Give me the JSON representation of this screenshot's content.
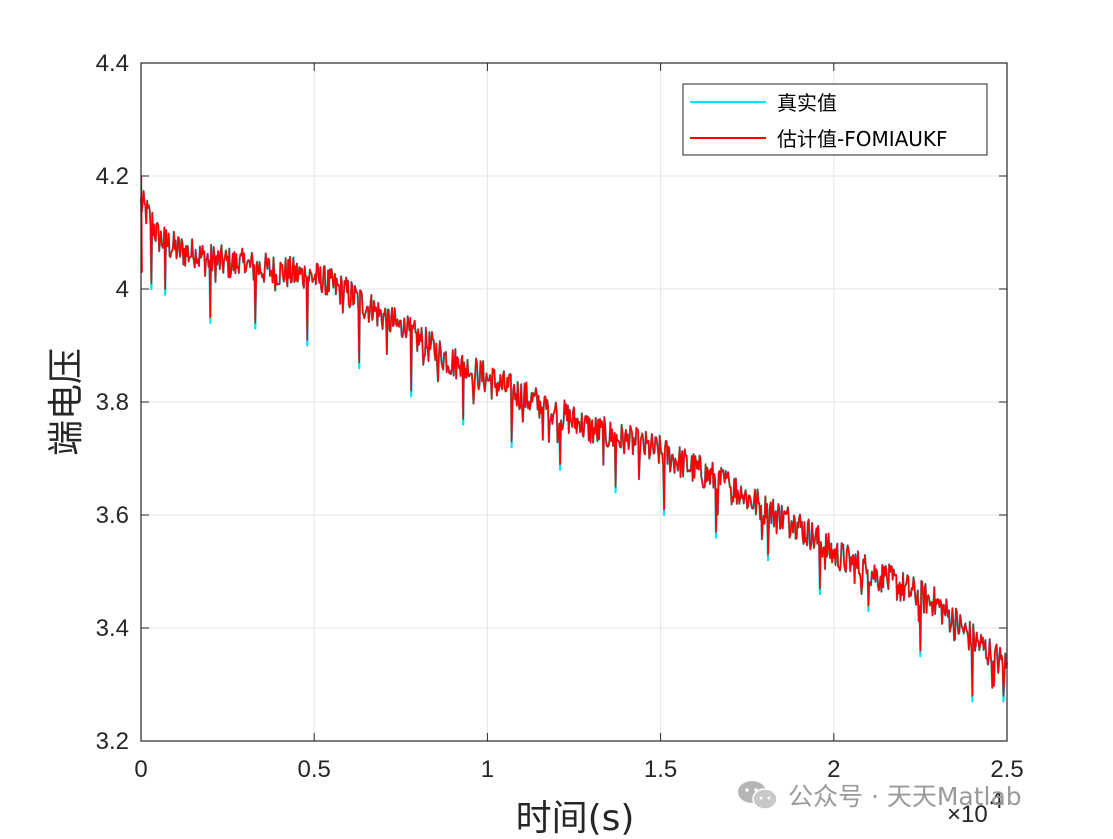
{
  "chart_data": {
    "type": "line",
    "title": "",
    "xlabel": "时间(s)",
    "ylabel": "端电压",
    "xlim": [
      0,
      25000
    ],
    "ylim": [
      3.2,
      4.4
    ],
    "x_ticks": [
      0,
      5000,
      10000,
      15000,
      20000,
      25000
    ],
    "x_tick_labels": [
      "0",
      "0.5",
      "1",
      "1.5",
      "2",
      "2.5"
    ],
    "x_exponent_label": "×10",
    "x_exponent_power": "4",
    "y_ticks": [
      3.2,
      3.4,
      3.6,
      3.8,
      4.0,
      4.2,
      4.4
    ],
    "y_tick_labels": [
      "3.2",
      "3.4",
      "3.6",
      "3.8",
      "4",
      "4.2",
      "4.4"
    ],
    "grid": true,
    "legend_position": "top-right",
    "series": [
      {
        "name": "真实值",
        "color": "#00e5ff",
        "x": [
          0,
          100,
          300,
          500,
          1000,
          2000,
          3000,
          4000,
          5000,
          6000,
          7000,
          8000,
          9000,
          10000,
          11000,
          12000,
          13000,
          14000,
          15000,
          16000,
          17000,
          18000,
          19000,
          20000,
          21000,
          22000,
          23000,
          24000,
          25000
        ],
        "y": [
          4.16,
          4.15,
          4.13,
          4.1,
          4.08,
          4.06,
          4.05,
          4.04,
          4.03,
          4.0,
          3.96,
          3.92,
          3.88,
          3.85,
          3.82,
          3.79,
          3.76,
          3.74,
          3.72,
          3.69,
          3.66,
          3.62,
          3.59,
          3.54,
          3.51,
          3.48,
          3.45,
          3.39,
          3.34
        ],
        "dips": [
          {
            "x": 300,
            "y": 4.0
          },
          {
            "x": 700,
            "y": 3.99
          },
          {
            "x": 2000,
            "y": 3.94
          },
          {
            "x": 3300,
            "y": 3.93
          },
          {
            "x": 4800,
            "y": 3.9
          },
          {
            "x": 6300,
            "y": 3.86
          },
          {
            "x": 7800,
            "y": 3.81
          },
          {
            "x": 9300,
            "y": 3.76
          },
          {
            "x": 10700,
            "y": 3.72
          },
          {
            "x": 12100,
            "y": 3.68
          },
          {
            "x": 13700,
            "y": 3.64
          },
          {
            "x": 15100,
            "y": 3.6
          },
          {
            "x": 16600,
            "y": 3.56
          },
          {
            "x": 18100,
            "y": 3.52
          },
          {
            "x": 19600,
            "y": 3.46
          },
          {
            "x": 21000,
            "y": 3.43
          },
          {
            "x": 22500,
            "y": 3.35
          },
          {
            "x": 24000,
            "y": 3.27
          },
          {
            "x": 24900,
            "y": 3.27
          }
        ]
      },
      {
        "name": "估计值-FOMIAUKF",
        "color": "#ff0000",
        "x": [
          0,
          100,
          300,
          500,
          1000,
          2000,
          3000,
          4000,
          5000,
          6000,
          7000,
          8000,
          9000,
          10000,
          11000,
          12000,
          13000,
          14000,
          15000,
          16000,
          17000,
          18000,
          19000,
          20000,
          21000,
          22000,
          23000,
          24000,
          25000
        ],
        "y": [
          4.16,
          4.15,
          4.13,
          4.1,
          4.08,
          4.06,
          4.05,
          4.04,
          4.03,
          4.0,
          3.96,
          3.92,
          3.88,
          3.85,
          3.82,
          3.79,
          3.76,
          3.74,
          3.72,
          3.69,
          3.66,
          3.62,
          3.59,
          3.54,
          3.51,
          3.48,
          3.45,
          3.39,
          3.34
        ],
        "dips": [
          {
            "x": 300,
            "y": 4.01
          },
          {
            "x": 700,
            "y": 4.0
          },
          {
            "x": 2000,
            "y": 3.95
          },
          {
            "x": 3300,
            "y": 3.94
          },
          {
            "x": 4800,
            "y": 3.91
          },
          {
            "x": 6300,
            "y": 3.87
          },
          {
            "x": 7800,
            "y": 3.82
          },
          {
            "x": 9300,
            "y": 3.77
          },
          {
            "x": 10700,
            "y": 3.73
          },
          {
            "x": 12100,
            "y": 3.69
          },
          {
            "x": 13700,
            "y": 3.65
          },
          {
            "x": 15100,
            "y": 3.61
          },
          {
            "x": 16600,
            "y": 3.57
          },
          {
            "x": 18100,
            "y": 3.53
          },
          {
            "x": 19600,
            "y": 3.47
          },
          {
            "x": 21000,
            "y": 3.44
          },
          {
            "x": 22500,
            "y": 3.36
          },
          {
            "x": 24000,
            "y": 3.28
          },
          {
            "x": 24900,
            "y": 3.28
          }
        ],
        "spikes": [
          {
            "x": 10,
            "y": 4.2
          },
          {
            "x": 30,
            "y": 4.03
          }
        ]
      }
    ],
    "noise_amplitude": 0.06
  },
  "watermark": {
    "text": "公众号 · 天天Matlab",
    "icon": "wechat-icon"
  }
}
